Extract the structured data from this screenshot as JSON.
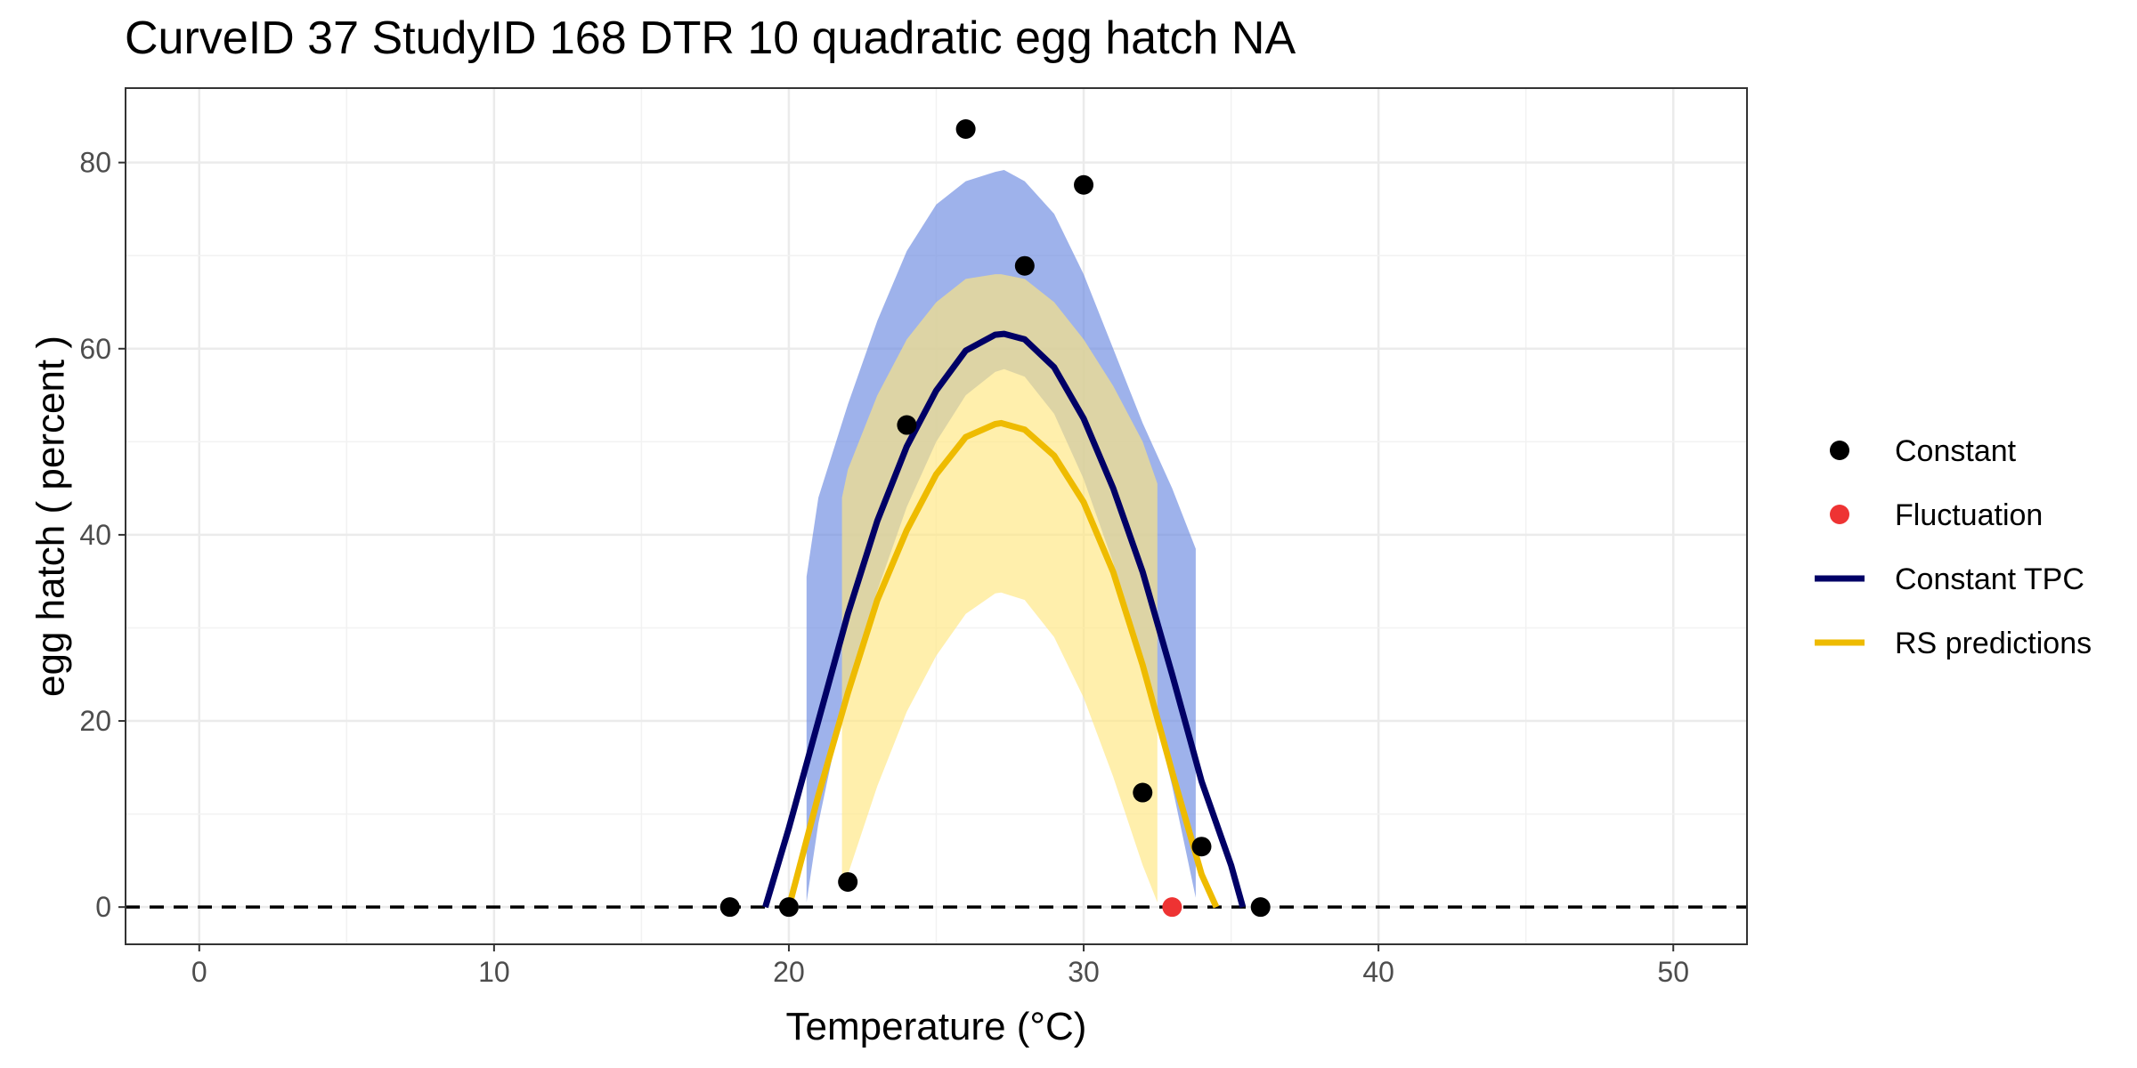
{
  "chart_data": {
    "type": "line",
    "title": "CurveID 37 StudyID 168 DTR 10 quadratic egg hatch NA",
    "xlabel": "Temperature (°C)",
    "ylabel": "egg hatch ( percent )",
    "xlim": [
      -2.5,
      52.5
    ],
    "ylim": [
      -4,
      88
    ],
    "xticks": [
      0,
      10,
      20,
      30,
      40,
      50
    ],
    "yticks": [
      0,
      20,
      40,
      60,
      80
    ],
    "grid": true,
    "legend_position": "right",
    "legend": [
      {
        "label": "Constant",
        "kind": "point",
        "color": "#000000"
      },
      {
        "label": "Fluctuation",
        "kind": "point",
        "color": "#EE3333"
      },
      {
        "label": "Constant TPC",
        "kind": "line",
        "color": "#000066"
      },
      {
        "label": "RS predictions",
        "kind": "line",
        "color": "#EEBB00"
      }
    ],
    "reference_line": {
      "y": 0,
      "style": "dashed",
      "color": "#000000"
    },
    "series": [
      {
        "name": "Constant",
        "kind": "points",
        "color": "#000000",
        "x": [
          18,
          20,
          22,
          24,
          26,
          28,
          30,
          32,
          34,
          36
        ],
        "y": [
          0,
          0,
          2.7,
          51.8,
          83.6,
          68.9,
          77.6,
          12.3,
          6.5,
          0
        ]
      },
      {
        "name": "Fluctuation",
        "kind": "points",
        "color": "#EE3333",
        "x": [
          33
        ],
        "y": [
          0
        ]
      },
      {
        "name": "Constant TPC",
        "kind": "curve",
        "color": "#000066",
        "x": [
          19.2,
          20,
          21,
          22,
          23,
          24,
          25,
          26,
          27,
          27.3,
          28,
          29,
          30,
          31,
          32,
          33,
          34,
          35,
          35.4
        ],
        "y": [
          0,
          8.5,
          20,
          31.5,
          41.5,
          49.5,
          55.5,
          59.8,
          61.5,
          61.6,
          61,
          58,
          52.5,
          45,
          36,
          25,
          13.5,
          4.5,
          0
        ]
      },
      {
        "name": "Constant TPC band",
        "kind": "band",
        "color": "#6A88E0",
        "x": [
          20.6,
          21,
          22,
          23,
          24,
          25,
          26,
          27,
          27.3,
          28,
          29,
          30,
          31,
          32,
          33,
          33.8
        ],
        "ymin": [
          0.5,
          9,
          24,
          34,
          43,
          50,
          55,
          57.5,
          57.8,
          57,
          53,
          46,
          37,
          26,
          13,
          1
        ],
        "ymax": [
          35.5,
          44,
          54,
          63,
          70.5,
          75.5,
          78,
          79,
          79.2,
          78,
          74.5,
          68,
          60,
          52,
          45,
          38.5
        ]
      },
      {
        "name": "RS predictions",
        "kind": "curve",
        "color": "#EEBB00",
        "x": [
          20,
          21,
          22,
          23,
          24,
          25,
          26,
          27,
          27.2,
          28,
          29,
          30,
          31,
          32,
          33,
          34,
          34.5
        ],
        "y": [
          0,
          12,
          23,
          33,
          40.5,
          46.5,
          50.5,
          51.9,
          52,
          51.3,
          48.5,
          43.5,
          36,
          26,
          14.5,
          3.5,
          0
        ]
      },
      {
        "name": "RS predictions band",
        "kind": "band",
        "color": "#FFE680",
        "x": [
          21.8,
          22,
          23,
          24,
          25,
          26,
          27,
          27.2,
          28,
          29,
          30,
          31,
          32,
          32.5
        ],
        "ymin": [
          2.5,
          3.5,
          13,
          21,
          27,
          31.5,
          33.7,
          33.8,
          33,
          29,
          22.5,
          14,
          4.5,
          0.5
        ],
        "ymax": [
          44,
          47,
          55,
          61,
          65,
          67.5,
          68,
          68,
          67.5,
          65,
          61,
          56,
          50,
          45.5
        ]
      }
    ]
  }
}
